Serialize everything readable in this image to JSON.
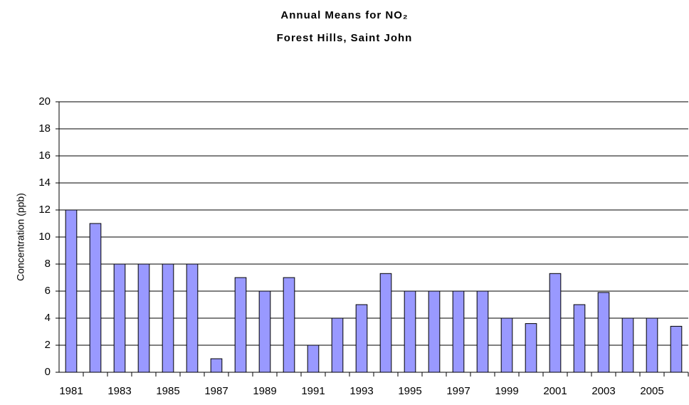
{
  "chart_data": {
    "type": "bar",
    "title": "Annual Means for NO₂",
    "subtitle": "Forest Hills, Saint John",
    "y_label": "Concentration (ppb)",
    "categories": [
      "1981",
      null,
      "1983",
      null,
      "1985",
      null,
      "1987",
      null,
      "1989",
      null,
      "1991",
      null,
      "1993",
      null,
      "1995",
      null,
      "1997",
      null,
      "1999",
      null,
      "2001",
      null,
      "2003",
      null,
      "2005",
      null
    ],
    "values": [
      12,
      11,
      8,
      8,
      8,
      8,
      1,
      7,
      6,
      7,
      2,
      4,
      5,
      7.3,
      6,
      6,
      6,
      6,
      4,
      3.6,
      7.3,
      5,
      5.9,
      4,
      4,
      3.4
    ],
    "color": "#9999ff",
    "ylim": [
      0,
      20
    ],
    "yticks": [
      0,
      2,
      4,
      6,
      8,
      10,
      12,
      14,
      16,
      18,
      20
    ],
    "grid": true
  }
}
